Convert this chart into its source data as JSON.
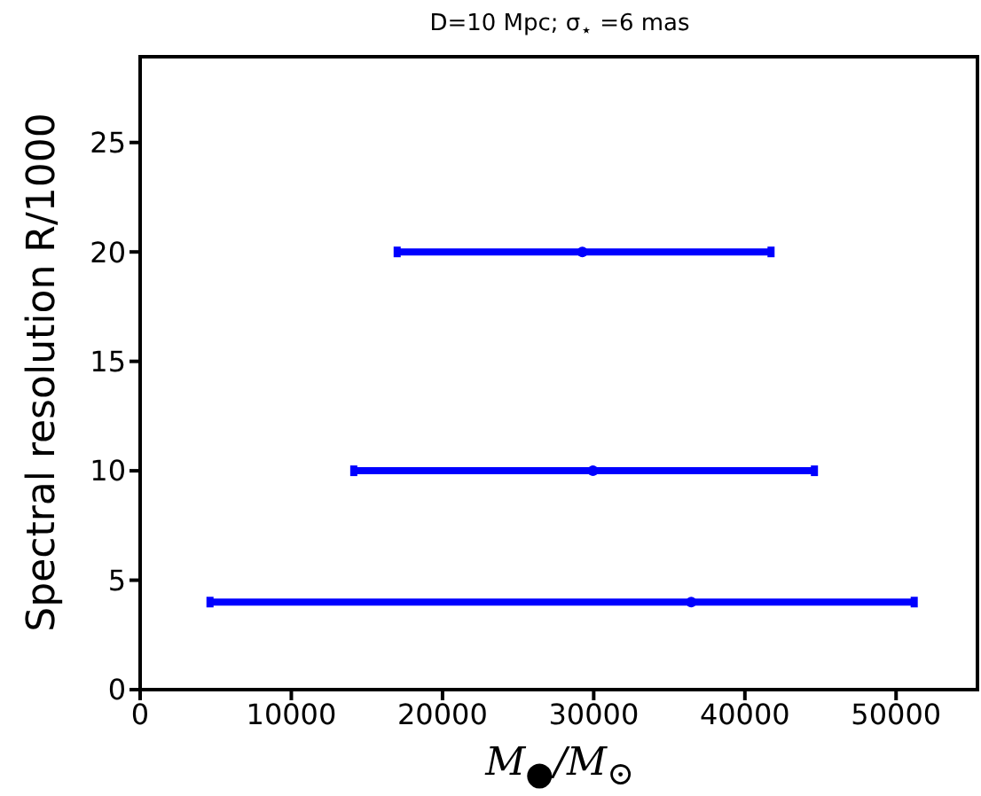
{
  "chart_data": {
    "type": "scatter",
    "title": "D=10 Mpc; σ$_{⋆}$ =6 mas",
    "xlabel": "M$_{●}$/M$_{⊙}$",
    "ylabel": "Spectral resolution R/1000",
    "x": [
      36450,
      29950,
      29250
    ],
    "values": [
      4,
      10,
      20
    ],
    "xerrors": [
      [
        4620,
        51200
      ],
      [
        14130,
        44600
      ],
      [
        17000,
        41730
      ]
    ],
    "color": "#0000ff",
    "marker": "circle",
    "grid": false,
    "xlim": [
      0,
      55500
    ],
    "xticks": [
      0,
      10000,
      20000,
      30000,
      40000,
      50000
    ],
    "ylim": [
      0,
      29
    ],
    "yticks": [
      0,
      5,
      10,
      15,
      20,
      25
    ]
  }
}
